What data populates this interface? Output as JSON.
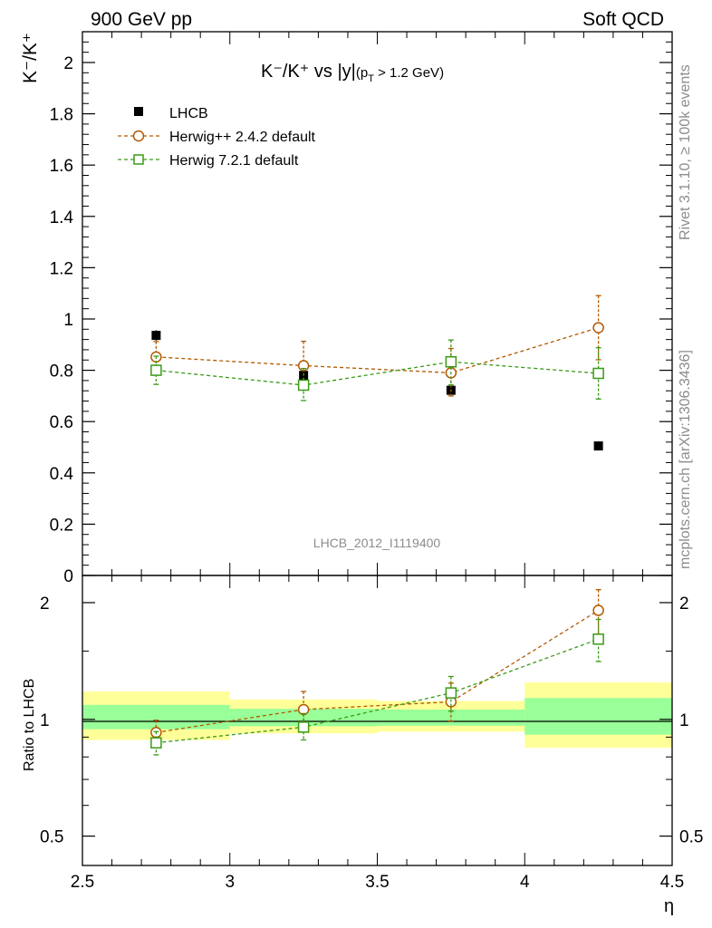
{
  "header": {
    "left": "900 GeV pp",
    "right": "Soft QCD"
  },
  "side_text": {
    "rivet": "Rivet 3.1.10, ≥ 100k events",
    "mcplots": "mcplots.cern.ch [arXiv:1306.3436]"
  },
  "watermark": "LHCB_2012_I1119400",
  "chart_data": [
    {
      "type": "scatter",
      "panel": "main",
      "title": "K⁻/K⁺ vs |y|(p_T > 1.2 GeV)",
      "title_parts": {
        "main": "K⁻/K⁺ vs |y|",
        "sub": "(p",
        "sub_T": "T",
        "sub_rest": " > 1.2 GeV)"
      },
      "ylabel": "K⁻/K⁺",
      "ylim": [
        0,
        2.12
      ],
      "yticks": [
        0,
        0.2,
        0.4,
        0.6,
        0.8,
        1,
        1.2,
        1.4,
        1.6,
        1.8,
        2
      ],
      "ytick_labels": [
        "0",
        "0.2",
        "0.4",
        "0.6",
        "0.8",
        "1",
        "1.2",
        "1.4",
        "1.6",
        "1.8",
        "2"
      ],
      "xlim": [
        2.5,
        4.5
      ],
      "series": [
        {
          "name": "LHCB",
          "legend": "LHCB",
          "marker": "filled-square",
          "color": "#000000",
          "x": [
            2.75,
            3.25,
            3.75,
            4.25
          ],
          "values": [
            0.936,
            0.78,
            0.722,
            0.505
          ],
          "err": [
            0.02,
            0.02,
            0.02,
            0.01
          ]
        },
        {
          "name": "Herwig++ 2.4.2 default",
          "legend": "Herwig++ 2.4.2 default",
          "marker": "open-circle",
          "color": "#b35900",
          "x": [
            2.75,
            3.25,
            3.75,
            4.25
          ],
          "values": [
            0.852,
            0.818,
            0.79,
            0.966
          ],
          "err_up": [
            0.06,
            0.095,
            0.095,
            0.125
          ],
          "err_dn": [
            0.06,
            0.075,
            0.09,
            0.125
          ]
        },
        {
          "name": "Herwig 7.2.1 default",
          "legend": "Herwig 7.2.1 default",
          "marker": "open-square",
          "color": "#3a9b16",
          "x": [
            2.75,
            3.25,
            3.75,
            4.25
          ],
          "values": [
            0.8,
            0.742,
            0.833,
            0.788
          ],
          "err_up": [
            0.055,
            0.065,
            0.085,
            0.1
          ],
          "err_dn": [
            0.055,
            0.06,
            0.09,
            0.1
          ]
        }
      ]
    },
    {
      "type": "scatter",
      "panel": "ratio",
      "ylabel": "Ratio to LHCB",
      "xlabel": "η",
      "yscale": "log",
      "ylim": [
        0.42,
        2.35
      ],
      "yticks": [
        0.5,
        1,
        2
      ],
      "ytick_labels": [
        "0.5",
        "1",
        "2"
      ],
      "xlim": [
        2.5,
        4.5
      ],
      "xticks": [
        2.5,
        3,
        3.5,
        4,
        4.5
      ],
      "xtick_labels": [
        "2.5",
        "3",
        "3.5",
        "4",
        "4.5"
      ],
      "bands": [
        {
          "x0": 2.5,
          "x1": 3.0,
          "yellow": [
            0.885,
            1.18
          ],
          "green": [
            0.943,
            1.09
          ]
        },
        {
          "x0": 3.0,
          "x1": 3.5,
          "yellow": [
            0.92,
            1.125
          ],
          "green": [
            0.96,
            1.065
          ]
        },
        {
          "x0": 3.5,
          "x1": 4.0,
          "yellow": [
            0.93,
            1.115
          ],
          "green": [
            0.963,
            1.06
          ]
        },
        {
          "x0": 4.0,
          "x1": 4.5,
          "yellow": [
            0.845,
            1.245
          ],
          "green": [
            0.913,
            1.135
          ]
        }
      ],
      "series": [
        {
          "name": "Herwig++ 2.4.2 default",
          "marker": "open-circle",
          "color": "#b35900",
          "x": [
            2.75,
            3.25,
            3.75,
            4.25
          ],
          "values": [
            0.925,
            1.06,
            1.11,
            1.91
          ],
          "err_up": [
            0.07,
            0.12,
            0.13,
            0.25
          ],
          "err_dn": [
            0.07,
            0.1,
            0.12,
            0.25
          ]
        },
        {
          "name": "Herwig 7.2.1 default",
          "marker": "open-square",
          "color": "#3a9b16",
          "x": [
            2.75,
            3.25,
            3.75,
            4.25
          ],
          "values": [
            0.87,
            0.955,
            1.17,
            1.61
          ],
          "err_up": [
            0.06,
            0.08,
            0.12,
            0.2
          ],
          "err_dn": [
            0.06,
            0.07,
            0.12,
            0.2
          ]
        }
      ]
    }
  ]
}
